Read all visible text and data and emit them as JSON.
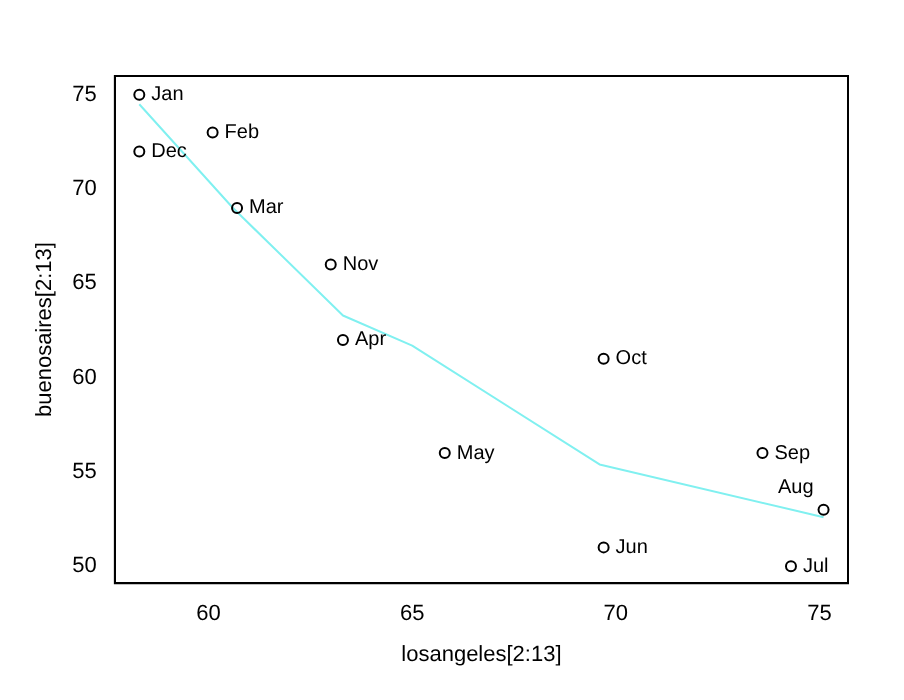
{
  "chart_data": {
    "type": "scatter",
    "xlabel": "losangeles[2:13]",
    "ylabel": "buenosaires[2:13]",
    "xlim": [
      57.7,
      75.7
    ],
    "ylim": [
      49.1,
      76
    ],
    "xticks": [
      60,
      65,
      70,
      75
    ],
    "yticks": [
      50,
      55,
      60,
      65,
      70,
      75
    ],
    "grid": false,
    "legend": false,
    "series": [
      {
        "type": "scatter",
        "color": "#000000",
        "marker": "circle",
        "x": [
          58.3,
          60.1,
          60.7,
          63.3,
          65.8,
          69.7,
          74.3,
          75.1,
          73.6,
          69.7,
          63.0,
          58.3
        ],
        "values": [
          75,
          73,
          69,
          62,
          56,
          51,
          50,
          53,
          56,
          61,
          66,
          72
        ]
      },
      {
        "type": "line",
        "color": "#80f0f0",
        "marker": "none",
        "line_style": "solid",
        "x": [
          58.3,
          60.6,
          63.3,
          65.0,
          69.6,
          75.1
        ],
        "values": [
          74.5,
          69.0,
          63.3,
          61.7,
          55.4,
          52.6
        ]
      }
    ],
    "annotations": [
      {
        "text": "Jan",
        "x": 58.3,
        "y": 75
      },
      {
        "text": "Feb",
        "x": 60.1,
        "y": 73
      },
      {
        "text": "Mar",
        "x": 60.7,
        "y": 69
      },
      {
        "text": "Apr",
        "x": 63.3,
        "y": 62
      },
      {
        "text": "May",
        "x": 65.8,
        "y": 56
      },
      {
        "text": "Jun",
        "x": 69.7,
        "y": 51
      },
      {
        "text": "Jul",
        "x": 74.3,
        "y": 50
      },
      {
        "text": "Aug",
        "x": 75.1,
        "y": 53
      },
      {
        "text": "Sep",
        "x": 73.6,
        "y": 56
      },
      {
        "text": "Oct",
        "x": 69.7,
        "y": 61
      },
      {
        "text": "Nov",
        "x": 63.0,
        "y": 66
      },
      {
        "text": "Dec",
        "x": 58.3,
        "y": 72
      }
    ]
  }
}
